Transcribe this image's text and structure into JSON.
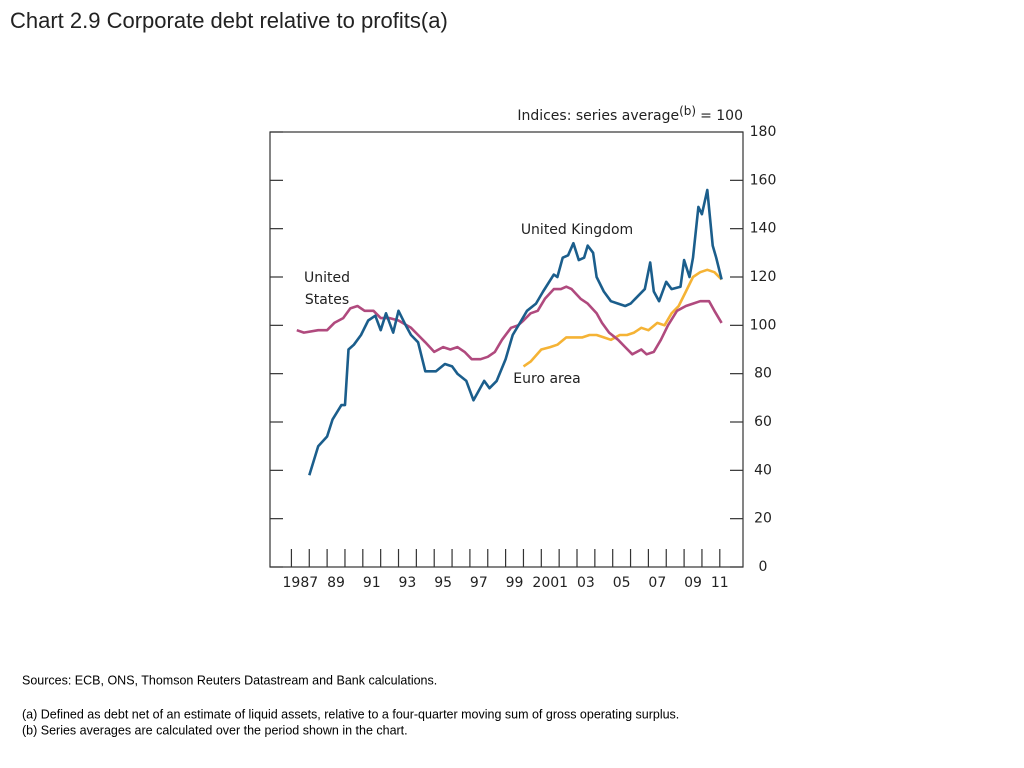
{
  "chart_data": {
    "type": "line",
    "title": "Chart 2.9  Corporate debt relative to profits(a)",
    "y_label": "Indices:  series average",
    "y_label_note": "(b)",
    "y_label_suffix": "= 100",
    "xlim": [
      1985.8,
      2012.3
    ],
    "ylim": [
      0,
      180
    ],
    "yticks": [
      0,
      20,
      40,
      60,
      80,
      100,
      120,
      140,
      160,
      180
    ],
    "xticks": [
      {
        "value": 1987.5,
        "label": "1987"
      },
      {
        "value": 1989.5,
        "label": "89"
      },
      {
        "value": 1991.5,
        "label": "91"
      },
      {
        "value": 1993.5,
        "label": "93"
      },
      {
        "value": 1995.5,
        "label": "95"
      },
      {
        "value": 1997.5,
        "label": "97"
      },
      {
        "value": 1999.5,
        "label": "99"
      },
      {
        "value": 2001.5,
        "label": "2001"
      },
      {
        "value": 2003.5,
        "label": "03"
      },
      {
        "value": 2005.5,
        "label": "05"
      },
      {
        "value": 2007.5,
        "label": "07"
      },
      {
        "value": 2009.5,
        "label": "09"
      },
      {
        "value": 2011,
        "label": "11"
      }
    ],
    "xtick_marks": [
      1987,
      1988,
      1989,
      1990,
      1991,
      1992,
      1993,
      1994,
      1995,
      1996,
      1997,
      1998,
      1999,
      2000,
      2001,
      2002,
      2003,
      2004,
      2005,
      2006,
      2007,
      2008,
      2009,
      2010,
      2011
    ],
    "series": [
      {
        "name": "United Kingdom",
        "color": "#1b5e8c",
        "x": [
          1988.0,
          1988.5,
          1989.0,
          1989.3,
          1989.8,
          1990.0,
          1990.2,
          1990.5,
          1990.9,
          1991.3,
          1991.7,
          1992.0,
          1992.3,
          1992.7,
          1993.0,
          1993.4,
          1993.7,
          1994.1,
          1994.5,
          1995.1,
          1995.6,
          1996.0,
          1996.3,
          1996.8,
          1997.2,
          1997.8,
          1998.1,
          1998.5,
          1999.0,
          1999.4,
          1999.8,
          2000.2,
          2000.7,
          2001.1,
          2001.7,
          2001.9,
          2002.2,
          2002.5,
          2002.8,
          2003.1,
          2003.4,
          2003.6,
          2003.9,
          2004.1,
          2004.5,
          2004.9,
          2005.3,
          2005.7,
          2006.0,
          2006.4,
          2006.8,
          2007.1,
          2007.3,
          2007.6,
          2008.0,
          2008.3,
          2008.8,
          2009.0,
          2009.3,
          2009.5,
          2009.8,
          2010.0,
          2010.3,
          2010.6,
          2010.8,
          2011.1
        ],
        "values": [
          38,
          50,
          54,
          61,
          67,
          67,
          90,
          92,
          96,
          102,
          104,
          98,
          105,
          97,
          106,
          100,
          96,
          93,
          81,
          81,
          84,
          83,
          80,
          77,
          69,
          77,
          74,
          77,
          86,
          96,
          101,
          106,
          109,
          114,
          121,
          120,
          128,
          129,
          134,
          127,
          128,
          133,
          130,
          120,
          114,
          110,
          109,
          108,
          109,
          112,
          115,
          126,
          114,
          110,
          118,
          115,
          116,
          127,
          120,
          128,
          149,
          146,
          156,
          133,
          128,
          119
        ]
      },
      {
        "name": "United States",
        "color": "#b04a7e",
        "x": [
          1987.3,
          1987.7,
          1988.5,
          1989.0,
          1989.4,
          1989.9,
          1990.3,
          1990.7,
          1991.1,
          1991.6,
          1992.0,
          1992.5,
          1993.0,
          1993.7,
          1994.1,
          1994.5,
          1995.0,
          1995.5,
          1995.9,
          1996.3,
          1996.7,
          1997.1,
          1997.6,
          1998.0,
          1998.4,
          1998.8,
          1999.3,
          1999.7,
          2000.0,
          2000.4,
          2000.8,
          2001.2,
          2001.7,
          2002.1,
          2002.4,
          2002.7,
          2003.2,
          2003.6,
          2004.1,
          2004.4,
          2004.8,
          2005.3,
          2005.7,
          2006.1,
          2006.6,
          2006.9,
          2007.3,
          2007.7,
          2008.1,
          2008.6,
          2009.1,
          2009.5,
          2009.9,
          2010.4,
          2010.7,
          2011.1
        ],
        "values": [
          98,
          97,
          98,
          98,
          101,
          103,
          107,
          108,
          106,
          106,
          103,
          103,
          102,
          99,
          96,
          93,
          89,
          91,
          90,
          91,
          89,
          86,
          86,
          87,
          89,
          94,
          99,
          100,
          102,
          105,
          106,
          111,
          115,
          115,
          116,
          115,
          111,
          109,
          105,
          101,
          97,
          94,
          91,
          88,
          90,
          88,
          89,
          94,
          100,
          106,
          108,
          109,
          110,
          110,
          106,
          101
        ]
      },
      {
        "name": "Euro area",
        "color": "#f5b335",
        "x": [
          2000.0,
          2000.4,
          2001.0,
          2001.5,
          2001.9,
          2002.4,
          2002.8,
          2003.3,
          2003.7,
          2004.1,
          2004.5,
          2004.9,
          2005.4,
          2005.8,
          2006.2,
          2006.6,
          2007.0,
          2007.5,
          2007.9,
          2008.3,
          2008.7,
          2009.1,
          2009.5,
          2009.9,
          2010.3,
          2010.7,
          2011.1
        ],
        "values": [
          83,
          85,
          90,
          91,
          92,
          95,
          95,
          95,
          96,
          96,
          95,
          94,
          96,
          96,
          97,
          99,
          98,
          101,
          100,
          105,
          108,
          114,
          120,
          122,
          123,
          122,
          119
        ]
      }
    ],
    "sources": "Sources:  ECB, ONS, Thomson Reuters Datastream and Bank calculations.",
    "notes": [
      "(a)  Defined as debt net of an estimate of liquid assets, relative to a four-quarter moving sum of gross operating surplus.",
      "(b)  Series averages are calculated over the period shown in the chart."
    ]
  }
}
